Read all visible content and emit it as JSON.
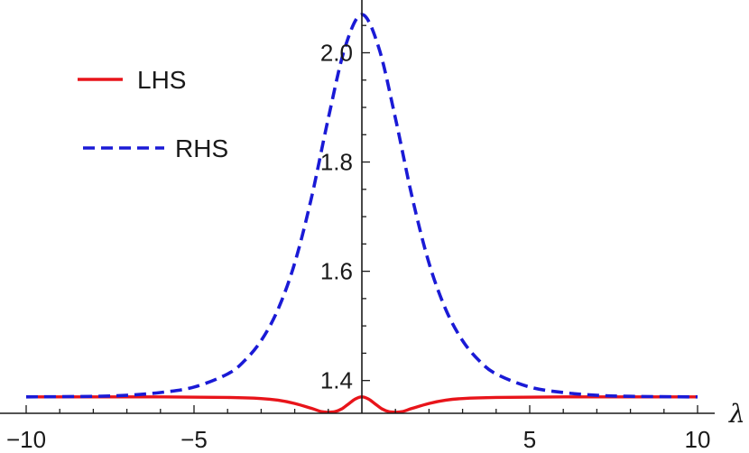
{
  "chart_data": {
    "type": "line",
    "xlabel": "λ",
    "ylabel": "",
    "xlim": [
      -10,
      10
    ],
    "ylim": [
      1.34,
      2.09
    ],
    "x_axis_crossing_y": 1.34,
    "y_axis_at_x": 0,
    "x_ticks": [
      -10,
      -5,
      5,
      10
    ],
    "x_tick_labels": [
      "−10",
      "−5",
      "5",
      "10"
    ],
    "y_ticks": [
      1.4,
      1.6,
      1.8,
      2.0
    ],
    "y_tick_labels": [
      "1.4",
      "1.6",
      "1.8",
      "2.0"
    ],
    "grid": false,
    "legend_position": "top-left",
    "series": [
      {
        "name": "LHS",
        "color": "#e8141a",
        "style": "solid",
        "x": [
          -10,
          -6,
          -4,
          -3,
          -2.5,
          -2,
          -1.5,
          -1.2,
          -1,
          -0.8,
          -0.6,
          -0.4,
          -0.2,
          0,
          0.2,
          0.4,
          0.6,
          0.8,
          1,
          1.2,
          1.5,
          2,
          2.5,
          3,
          4,
          6,
          10
        ],
        "y": [
          1.37,
          1.37,
          1.369,
          1.367,
          1.364,
          1.358,
          1.349,
          1.343,
          1.342,
          1.343,
          1.348,
          1.357,
          1.366,
          1.37,
          1.366,
          1.357,
          1.348,
          1.343,
          1.342,
          1.343,
          1.349,
          1.358,
          1.364,
          1.367,
          1.369,
          1.37,
          1.37
        ]
      },
      {
        "name": "RHS",
        "color": "#1a1ad6",
        "style": "dashed",
        "x": [
          -10,
          -8,
          -7,
          -6,
          -5,
          -4,
          -3.5,
          -3,
          -2.5,
          -2,
          -1.5,
          -1,
          -0.5,
          0,
          0.5,
          1,
          1.5,
          2,
          2.5,
          3,
          3.5,
          4,
          5,
          6,
          7,
          8,
          10
        ],
        "y": [
          1.37,
          1.371,
          1.373,
          1.378,
          1.388,
          1.412,
          1.436,
          1.473,
          1.53,
          1.615,
          1.735,
          1.88,
          2.01,
          2.07,
          2.01,
          1.88,
          1.735,
          1.615,
          1.53,
          1.473,
          1.436,
          1.412,
          1.388,
          1.378,
          1.373,
          1.371,
          1.37
        ]
      }
    ]
  }
}
